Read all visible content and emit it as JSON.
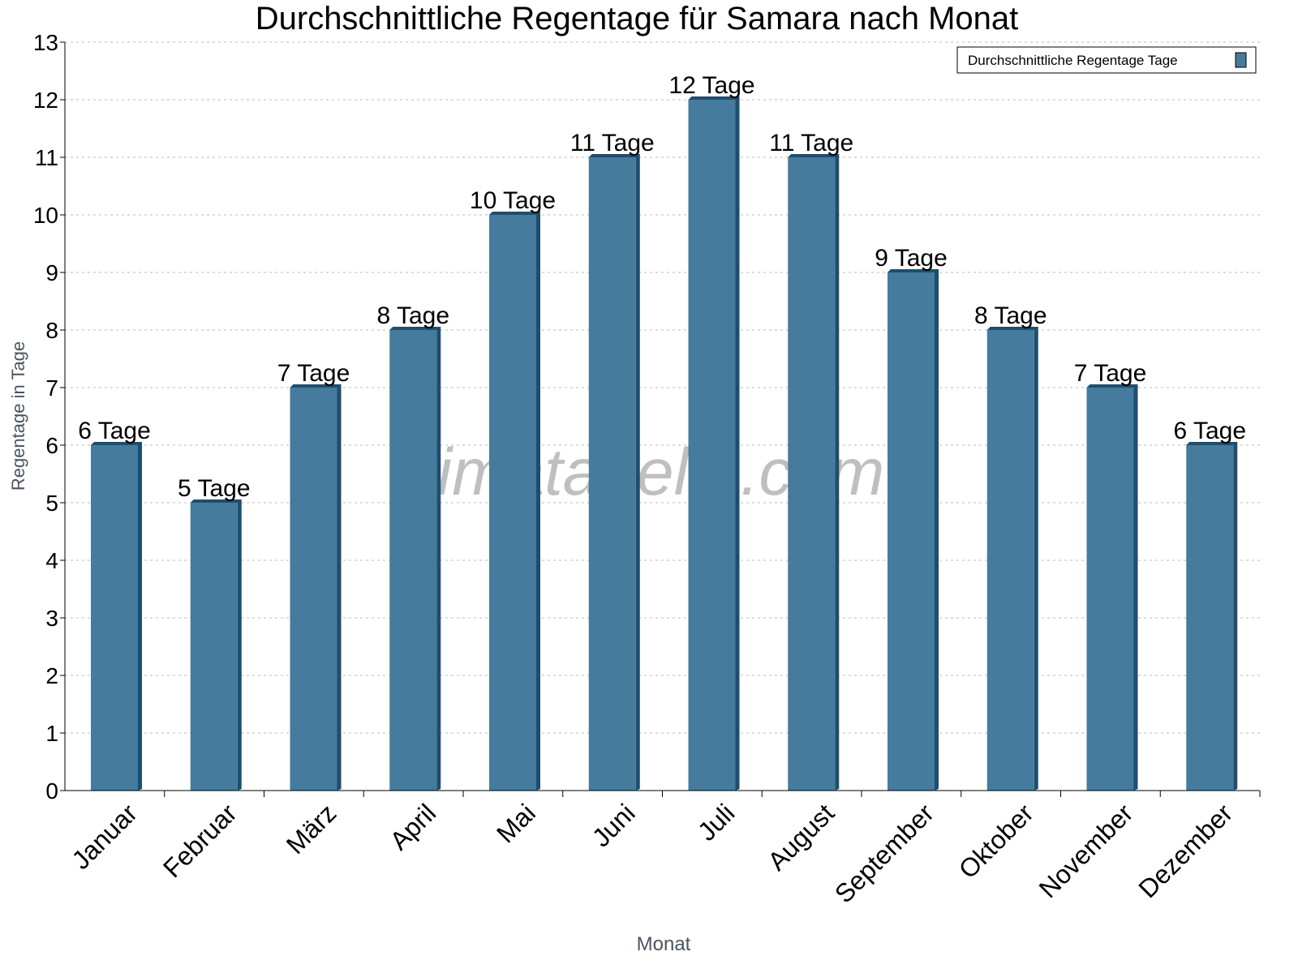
{
  "chart_data": {
    "type": "bar",
    "title": "Durchschnittliche Regentage für Samara nach Monat",
    "xlabel": "Monat",
    "ylabel": "Regentage in Tage",
    "categories": [
      "Januar",
      "Februar",
      "März",
      "April",
      "Mai",
      "Juni",
      "Juli",
      "August",
      "September",
      "Oktober",
      "November",
      "Dezember"
    ],
    "series": [
      {
        "name": "Durchschnittliche Regentage Tage",
        "values": [
          6,
          5,
          7,
          8,
          10,
          11,
          12,
          11,
          9,
          8,
          7,
          6
        ]
      }
    ],
    "data_labels": [
      "6 Tage",
      "5 Tage",
      "7 Tage",
      "8 Tage",
      "10 Tage",
      "11 Tage",
      "12 Tage",
      "11 Tage",
      "9 Tage",
      "8 Tage",
      "7 Tage",
      "6 Tage"
    ],
    "yticks": [
      "0",
      "1",
      "2",
      "3",
      "4",
      "5",
      "6",
      "7",
      "8",
      "9",
      "10",
      "11",
      "12",
      "13"
    ],
    "ylim": [
      0,
      13
    ],
    "grid": true,
    "legend_position": "top-right",
    "watermark": "klimatabelle.com",
    "colors": {
      "bar": "#457b9d",
      "bar_edge": "#1d4e6e"
    }
  }
}
